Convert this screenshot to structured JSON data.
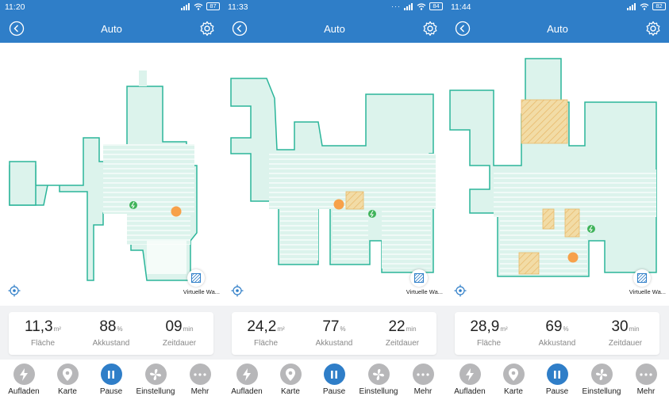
{
  "colors": {
    "accent": "#2f7ec8",
    "map_fill": "#dcf3ec",
    "map_edge": "#2bb59a",
    "robot": "#f7a14a",
    "charger": "#3fb35a",
    "zone_fill": "#f2dca6",
    "nav_inactive": "#b7b7b9"
  },
  "panels": [
    {
      "status": {
        "time": "11:20",
        "battery": "87"
      },
      "title": "Auto",
      "virtual_wall": "Virtuelle Wa...",
      "stats": [
        {
          "value": "11,3",
          "unit": "m²",
          "label": "Fläche"
        },
        {
          "value": "88",
          "unit": "%",
          "label": "Akkustand"
        },
        {
          "value": "09",
          "unit": "min",
          "label": "Zeitdauer"
        }
      ],
      "nav": [
        {
          "label": "Aufladen",
          "icon": "bolt-icon"
        },
        {
          "label": "Karte",
          "icon": "location-pin-icon"
        },
        {
          "label": "Pause",
          "icon": "pause-icon"
        },
        {
          "label": "Einstellung",
          "icon": "fan-icon"
        },
        {
          "label": "Mehr",
          "icon": "more-dots-icon"
        }
      ]
    },
    {
      "status": {
        "time": "11:33",
        "battery": "84"
      },
      "title": "Auto",
      "virtual_wall": "Virtuelle Wa...",
      "stats": [
        {
          "value": "24,2",
          "unit": "m²",
          "label": "Fläche"
        },
        {
          "value": "77",
          "unit": "%",
          "label": "Akkustand"
        },
        {
          "value": "22",
          "unit": "min",
          "label": "Zeitdauer"
        }
      ],
      "nav": [
        {
          "label": "Aufladen",
          "icon": "bolt-icon"
        },
        {
          "label": "Karte",
          "icon": "location-pin-icon"
        },
        {
          "label": "Pause",
          "icon": "pause-icon"
        },
        {
          "label": "Einstellung",
          "icon": "fan-icon"
        },
        {
          "label": "Mehr",
          "icon": "more-dots-icon"
        }
      ]
    },
    {
      "status": {
        "time": "11:44",
        "battery": "82"
      },
      "title": "Auto",
      "virtual_wall": "Virtuelle Wa...",
      "stats": [
        {
          "value": "28,9",
          "unit": "m²",
          "label": "Fläche"
        },
        {
          "value": "69",
          "unit": "%",
          "label": "Akkustand"
        },
        {
          "value": "30",
          "unit": "min",
          "label": "Zeitdauer"
        }
      ],
      "nav": [
        {
          "label": "Aufladen",
          "icon": "bolt-icon"
        },
        {
          "label": "Karte",
          "icon": "location-pin-icon"
        },
        {
          "label": "Pause",
          "icon": "pause-icon"
        },
        {
          "label": "Einstellung",
          "icon": "fan-icon"
        },
        {
          "label": "Mehr",
          "icon": "more-dots-icon"
        }
      ]
    }
  ]
}
